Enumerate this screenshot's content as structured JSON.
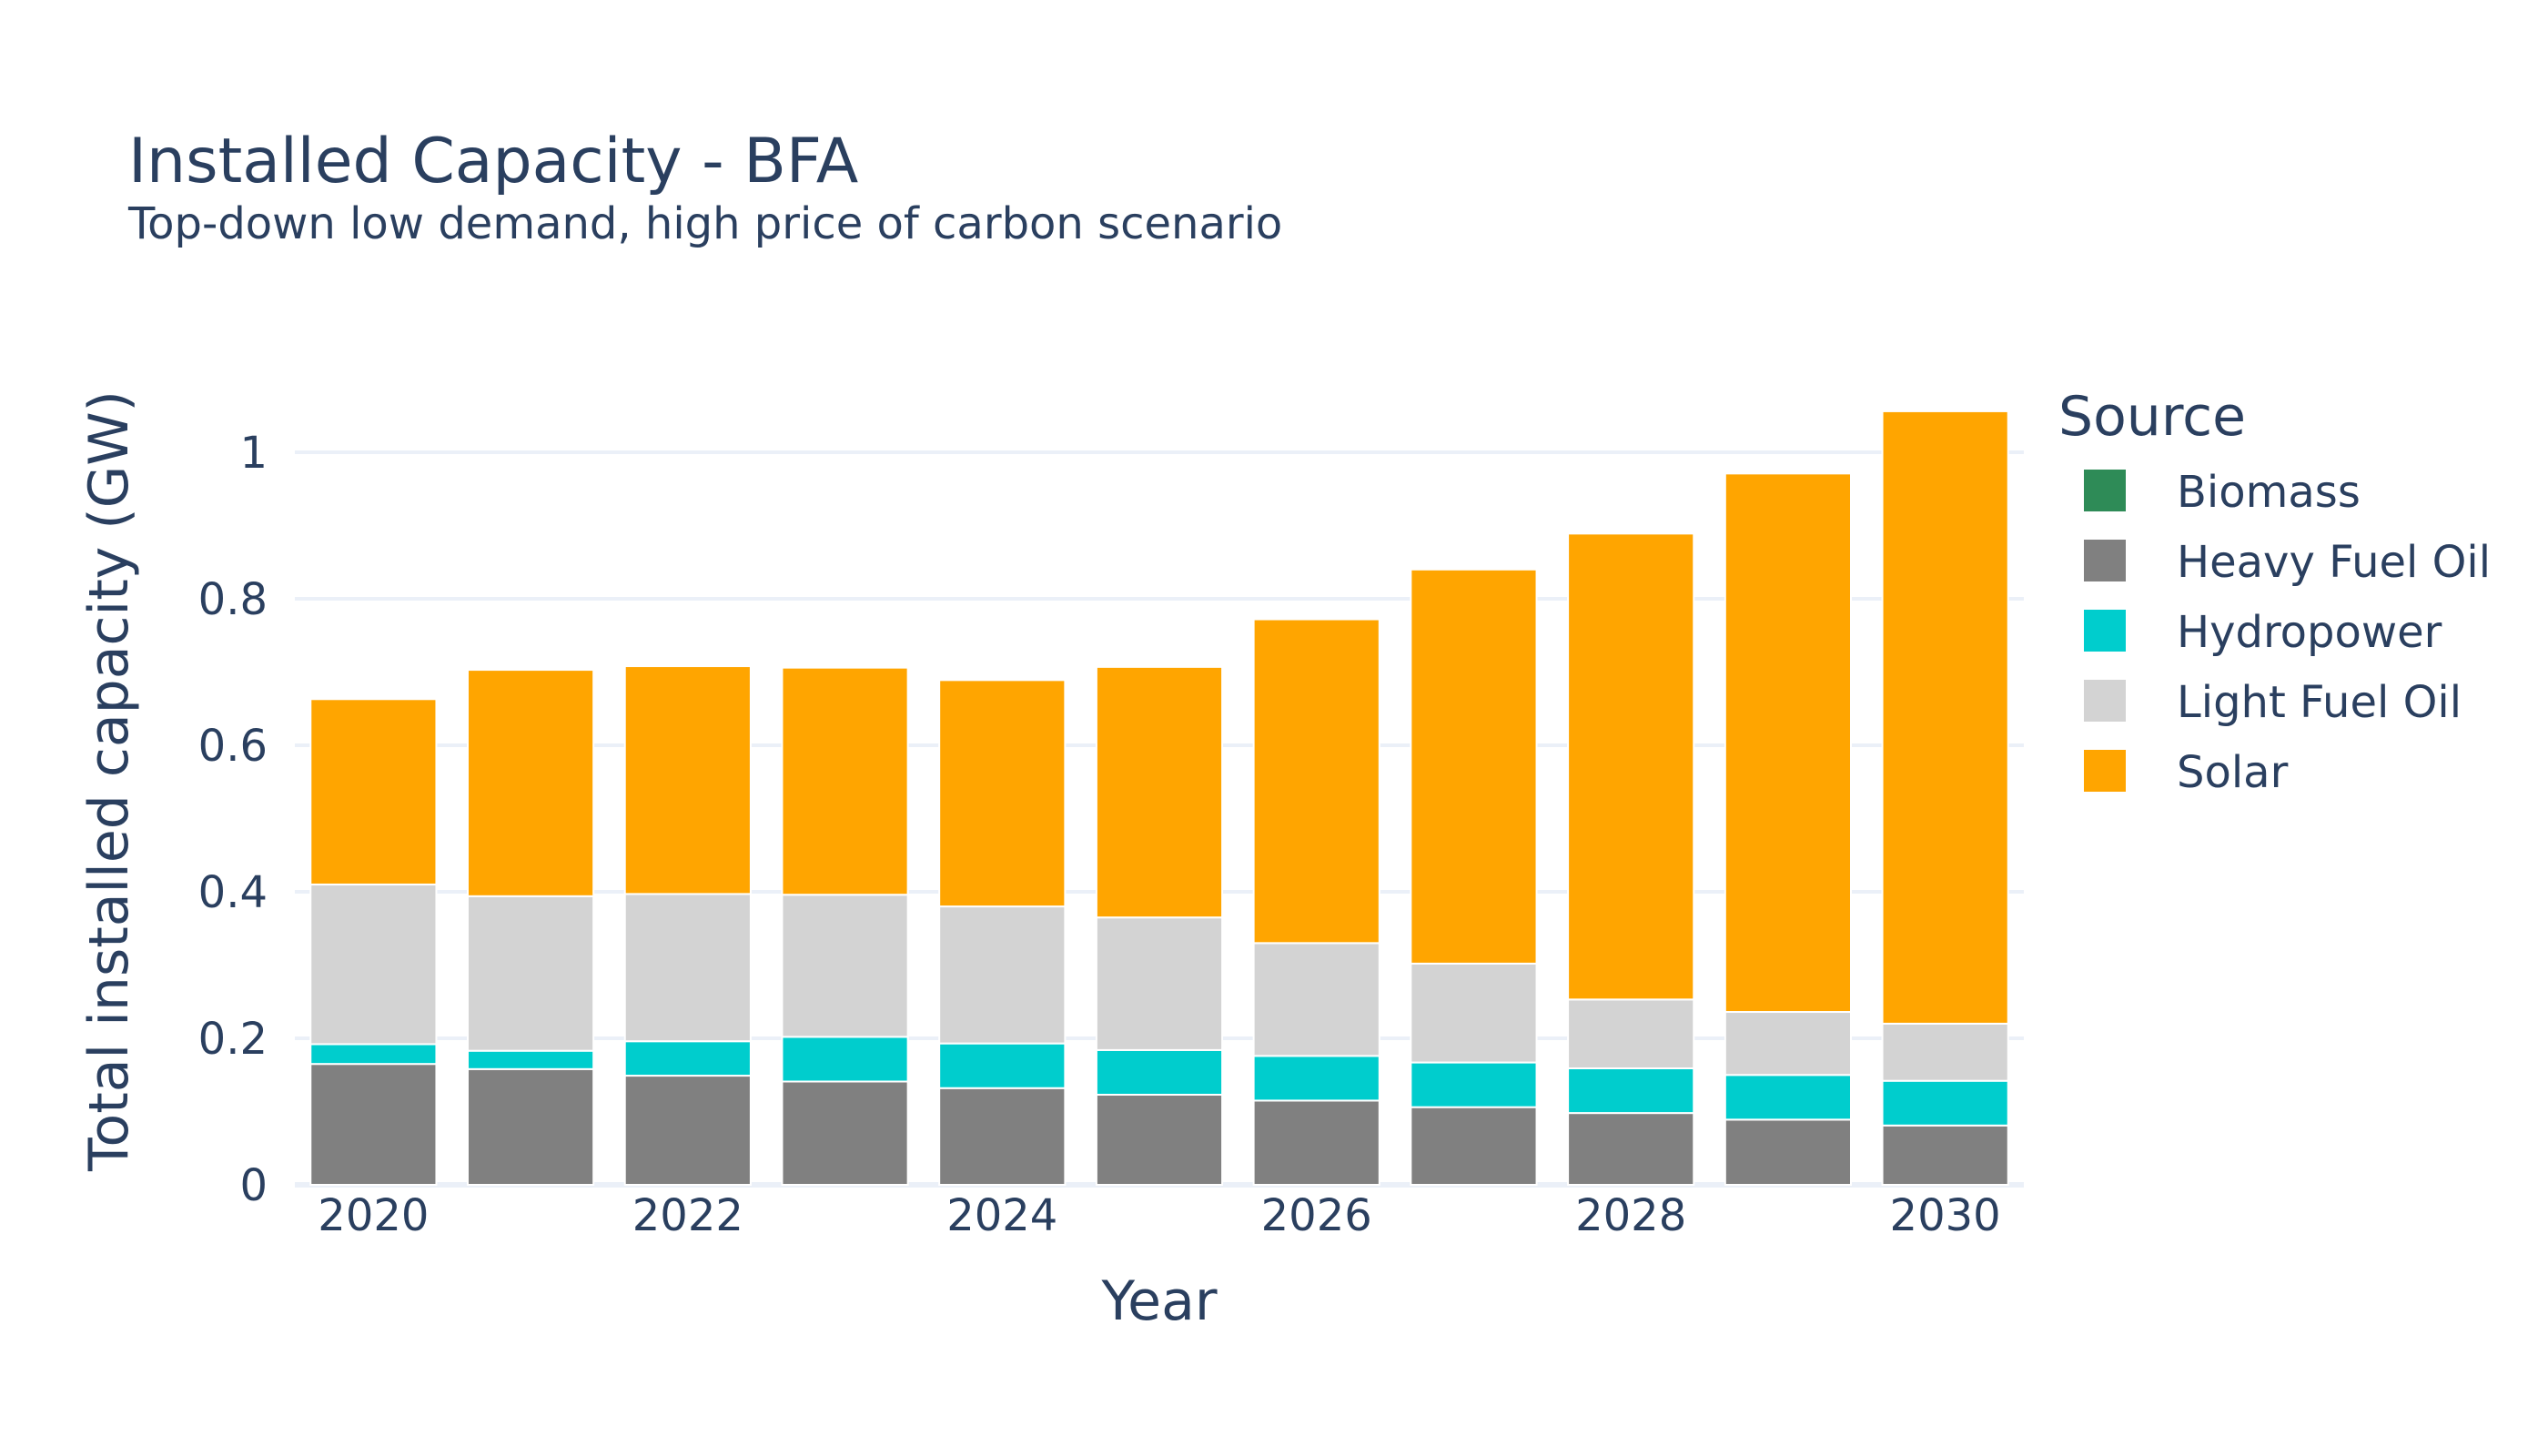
{
  "chart_data": {
    "type": "bar",
    "barmode": "stack",
    "title": "Installed Capacity - BFA",
    "subtitle": "Top-down low demand, high price of carbon scenario",
    "xlabel": "Year",
    "ylabel": "Total installed capacity (GW)",
    "ylim": [
      0,
      1.07
    ],
    "categories": [
      2020,
      2021,
      2022,
      2023,
      2024,
      2025,
      2026,
      2027,
      2028,
      2029,
      2030
    ],
    "x_ticks": [
      "2020",
      "2022",
      "2024",
      "2026",
      "2028",
      "2030"
    ],
    "y_ticks": [
      {
        "value": 0,
        "label": "0"
      },
      {
        "value": 0.2,
        "label": "0.2"
      },
      {
        "value": 0.4,
        "label": "0.4"
      },
      {
        "value": 0.6,
        "label": "0.6"
      },
      {
        "value": 0.8,
        "label": "0.8"
      },
      {
        "value": 1,
        "label": "1"
      }
    ],
    "grid": true,
    "legend": {
      "title": "Source",
      "placement": "right"
    },
    "series": [
      {
        "name": "Biomass",
        "color": "#2e8b57",
        "values": [
          0,
          0,
          0,
          0,
          0,
          0,
          0,
          0,
          0,
          0,
          0
        ]
      },
      {
        "name": "Heavy Fuel Oil",
        "color": "#808080",
        "values": [
          0.165,
          0.158,
          0.149,
          0.141,
          0.132,
          0.123,
          0.115,
          0.106,
          0.098,
          0.089,
          0.081
        ]
      },
      {
        "name": "Hydropower",
        "color": "#00cdcd",
        "values": [
          0.027,
          0.025,
          0.047,
          0.061,
          0.061,
          0.061,
          0.061,
          0.061,
          0.061,
          0.061,
          0.061
        ]
      },
      {
        "name": "Light Fuel Oil",
        "color": "#d3d3d3",
        "values": [
          0.218,
          0.211,
          0.201,
          0.194,
          0.187,
          0.181,
          0.154,
          0.135,
          0.094,
          0.086,
          0.078
        ]
      },
      {
        "name": "Solar",
        "color": "#ffa500",
        "values": [
          0.253,
          0.309,
          0.311,
          0.31,
          0.309,
          0.342,
          0.442,
          0.538,
          0.636,
          0.735,
          0.836
        ]
      }
    ]
  }
}
